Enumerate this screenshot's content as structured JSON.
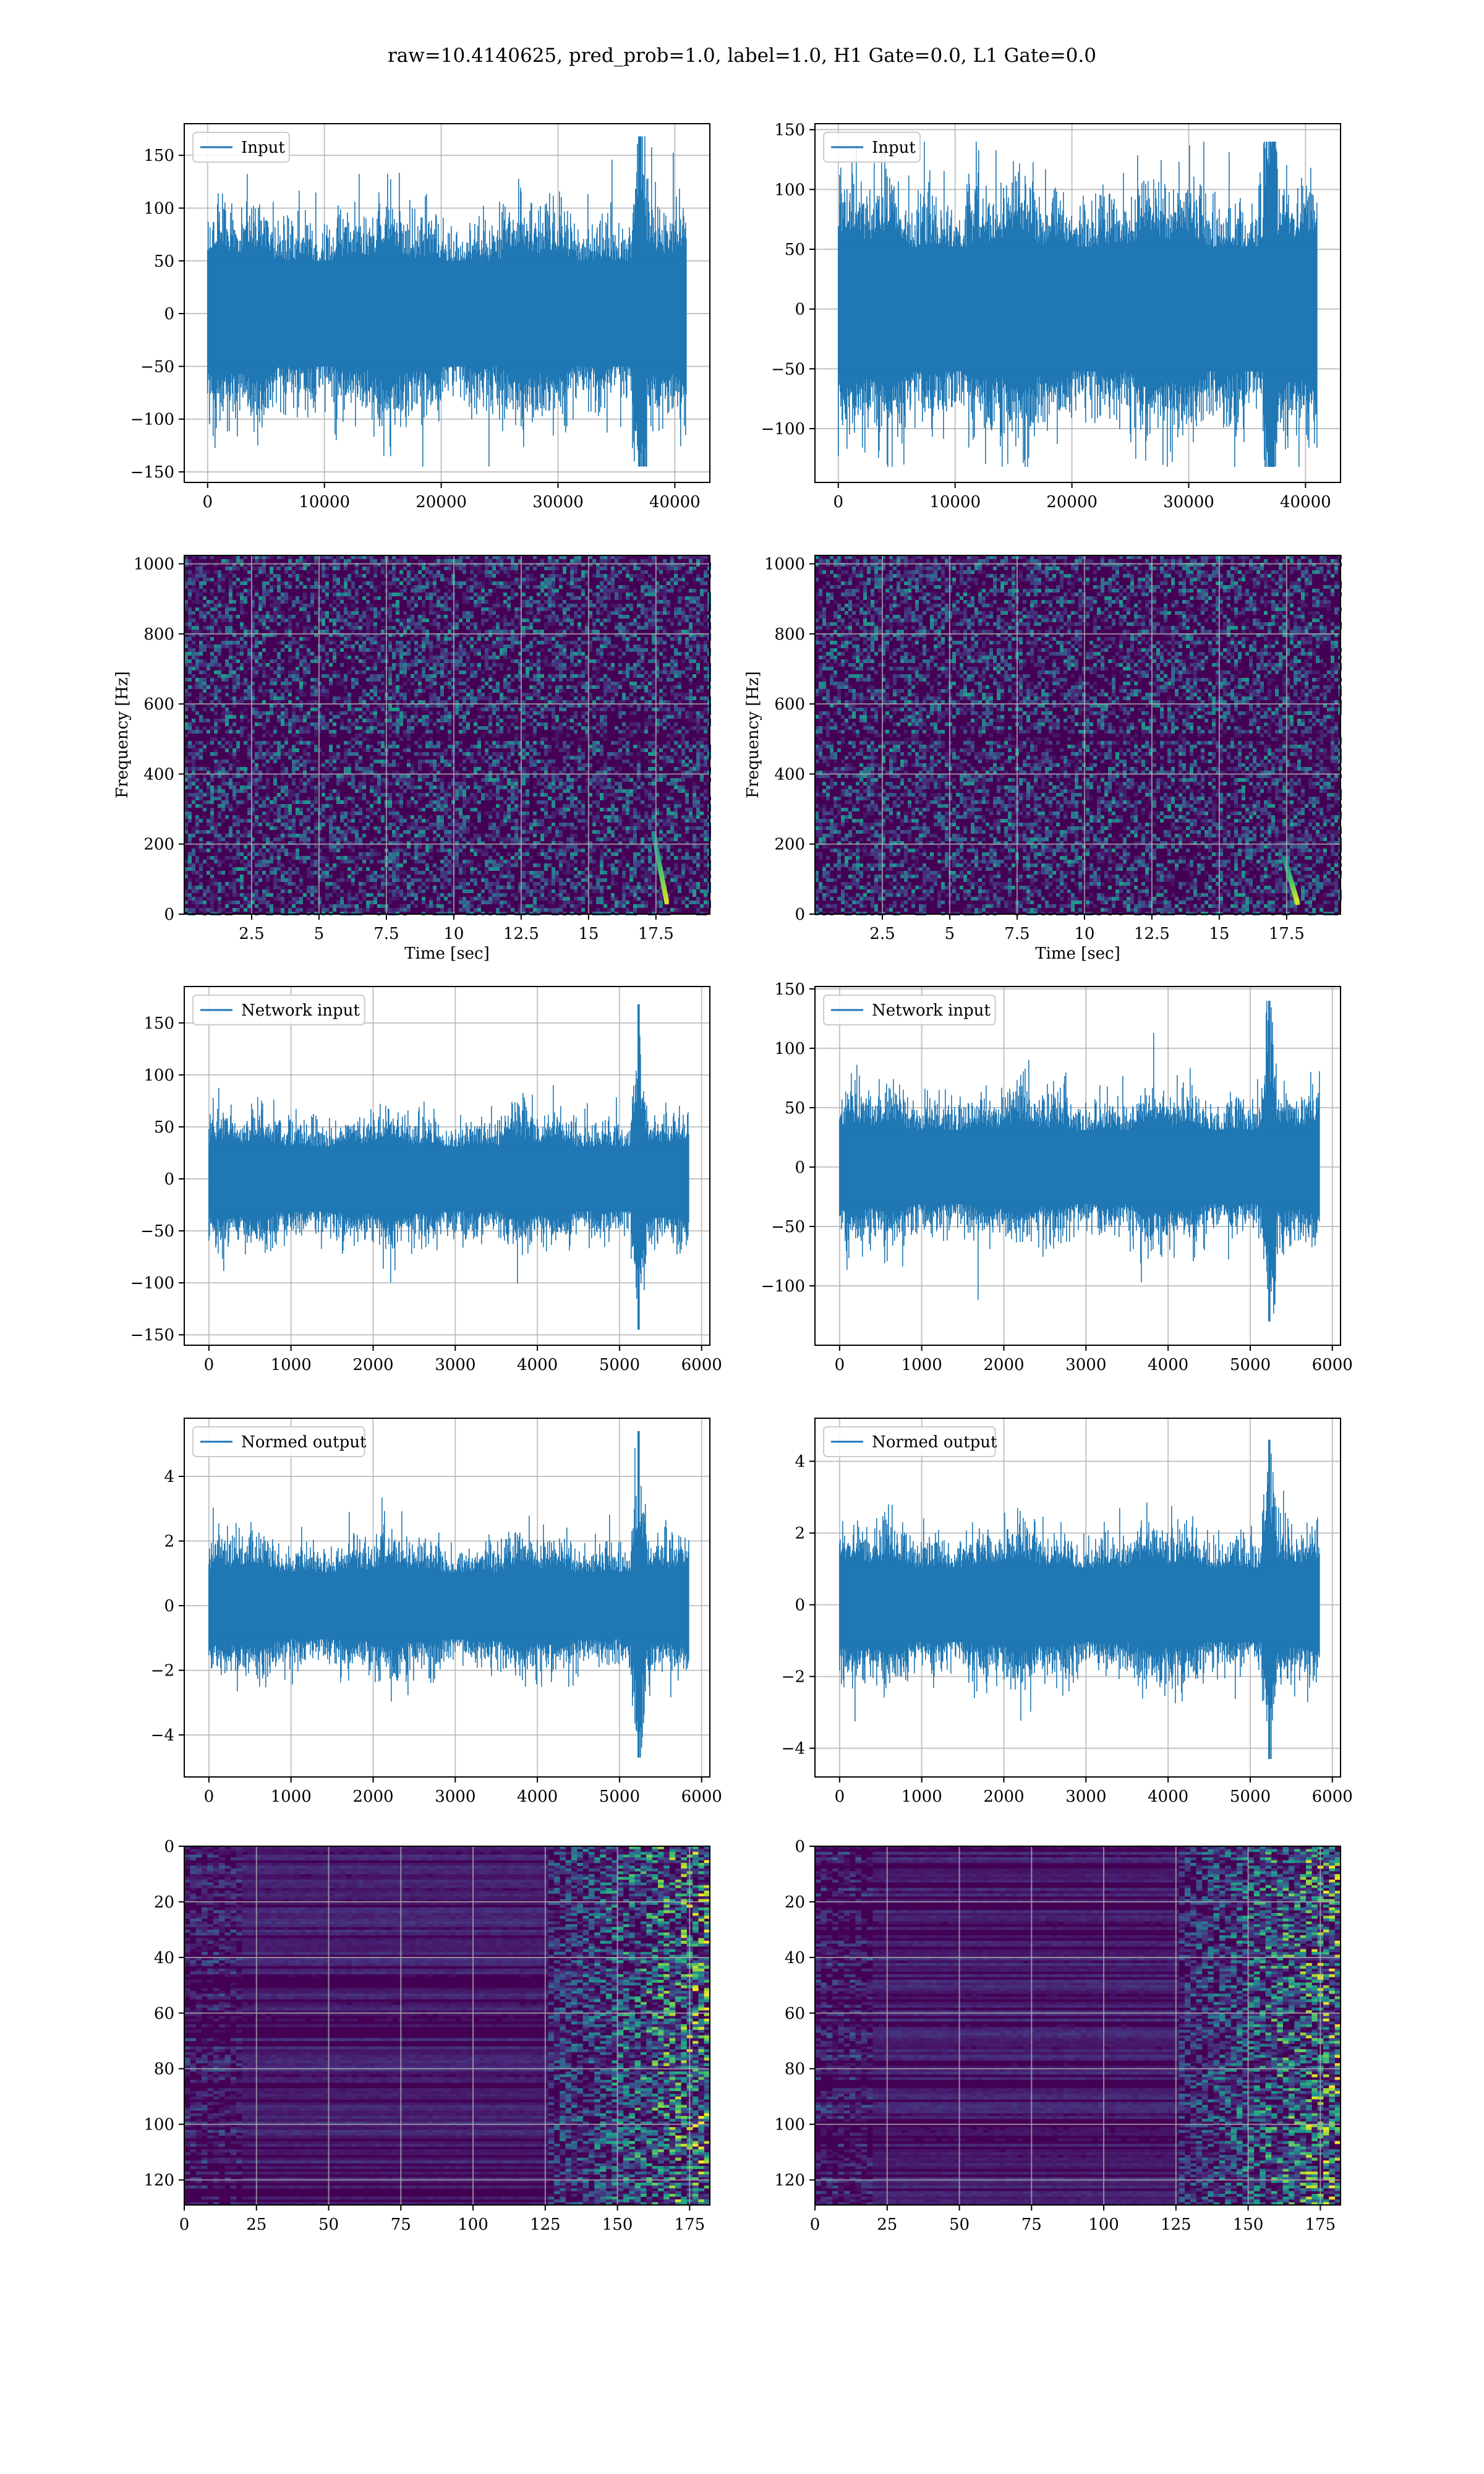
{
  "suptitle": "raw=10.4140625, pred_prob=1.0, label=1.0, H1 Gate=0.0, L1 Gate=0.0",
  "colors": {
    "series": "#1f77b4",
    "grid": "#b0b0b0",
    "viridis_dark": "#440154",
    "viridis_mid": "#21918c",
    "viridis_bright": "#fde725"
  },
  "chart_data": [
    {
      "id": "input-left",
      "type": "line",
      "legend": "Input",
      "legend_loc": "upper-left",
      "xlim": [
        -2000,
        43000
      ],
      "ylim": [
        -160,
        180
      ],
      "xticks": [
        0,
        10000,
        20000,
        30000,
        40000
      ],
      "yticks": [
        -150,
        -100,
        -50,
        0,
        50,
        100,
        150
      ],
      "xlabel": "",
      "ylabel": "",
      "grid": true,
      "n_points": 40960,
      "envelope_typical": 72,
      "envelope_peak": [
        -145,
        168
      ],
      "spike_x": 37000
    },
    {
      "id": "input-right",
      "type": "line",
      "legend": "Input",
      "legend_loc": "upper-left",
      "xlim": [
        -2000,
        43000
      ],
      "ylim": [
        -145,
        155
      ],
      "xticks": [
        0,
        10000,
        20000,
        30000,
        40000
      ],
      "yticks": [
        -100,
        -50,
        0,
        50,
        100,
        150
      ],
      "xlabel": "",
      "ylabel": "",
      "grid": true,
      "n_points": 40960,
      "envelope_typical": 75,
      "envelope_peak": [
        -132,
        140
      ],
      "spike_x": 37000
    },
    {
      "id": "spectrogram-left",
      "type": "heatmap",
      "colormap": "viridis",
      "xlim": [
        0,
        19.5
      ],
      "ylim": [
        0,
        1024
      ],
      "xticks": [
        2.5,
        5.0,
        7.5,
        10.0,
        12.5,
        15.0,
        17.5
      ],
      "yticks": [
        0,
        200,
        400,
        600,
        800,
        1000
      ],
      "xlabel": "Time [sec]",
      "ylabel": "Frequency [Hz]",
      "grid": true,
      "chirp": {
        "t_end": 17.9,
        "f_start": 30,
        "f_end": 230
      }
    },
    {
      "id": "spectrogram-right",
      "type": "heatmap",
      "colormap": "viridis",
      "xlim": [
        0,
        19.5
      ],
      "ylim": [
        0,
        1024
      ],
      "xticks": [
        2.5,
        5.0,
        7.5,
        10.0,
        12.5,
        15.0,
        17.5
      ],
      "yticks": [
        0,
        200,
        400,
        600,
        800,
        1000
      ],
      "xlabel": "Time [sec]",
      "ylabel": "Frequency [Hz]",
      "grid": true,
      "chirp": {
        "t_end": 17.9,
        "f_start": 30,
        "f_end": 160
      }
    },
    {
      "id": "network-input-left",
      "type": "line",
      "legend": "Network input",
      "legend_loc": "upper-left",
      "xlim": [
        -300,
        6100
      ],
      "ylim": [
        -160,
        185
      ],
      "xticks": [
        0,
        1000,
        2000,
        3000,
        4000,
        5000,
        6000
      ],
      "yticks": [
        -150,
        -100,
        -50,
        0,
        50,
        100,
        150
      ],
      "xlabel": "",
      "ylabel": "",
      "grid": true,
      "n_points": 5840,
      "envelope_typical": 45,
      "envelope_peak": [
        -145,
        168
      ],
      "spike_x": 5230
    },
    {
      "id": "network-input-right",
      "type": "line",
      "legend": "Network input",
      "legend_loc": "upper-left",
      "xlim": [
        -300,
        6100
      ],
      "ylim": [
        -150,
        152
      ],
      "xticks": [
        0,
        1000,
        2000,
        3000,
        4000,
        5000,
        6000
      ],
      "yticks": [
        -100,
        -50,
        0,
        50,
        100,
        150
      ],
      "xlabel": "",
      "ylabel": "",
      "grid": true,
      "n_points": 5840,
      "envelope_typical": 45,
      "envelope_peak": [
        -130,
        140
      ],
      "spike_x": 5230
    },
    {
      "id": "normed-output-left",
      "type": "line",
      "legend": "Normed output",
      "legend_loc": "upper-left",
      "xlim": [
        -300,
        6100
      ],
      "ylim": [
        -5.3,
        5.8
      ],
      "xticks": [
        0,
        1000,
        2000,
        3000,
        4000,
        5000,
        6000
      ],
      "yticks": [
        -4,
        -2,
        0,
        2,
        4
      ],
      "xlabel": "",
      "ylabel": "",
      "grid": true,
      "n_points": 5840,
      "envelope_typical": 1.5,
      "envelope_peak": [
        -4.7,
        5.4
      ],
      "spike_x": 5230
    },
    {
      "id": "normed-output-right",
      "type": "line",
      "legend": "Normed output",
      "legend_loc": "upper-left",
      "xlim": [
        -300,
        6100
      ],
      "ylim": [
        -4.8,
        5.2
      ],
      "xticks": [
        0,
        1000,
        2000,
        3000,
        4000,
        5000,
        6000
      ],
      "yticks": [
        -4,
        -2,
        0,
        2,
        4
      ],
      "xlabel": "",
      "ylabel": "",
      "grid": true,
      "n_points": 5840,
      "envelope_typical": 1.5,
      "envelope_peak": [
        -4.3,
        4.6
      ],
      "spike_x": 5230
    },
    {
      "id": "feature-map-left",
      "type": "heatmap",
      "colormap": "viridis",
      "xlim": [
        0,
        182
      ],
      "ylim": [
        129,
        0
      ],
      "xticks": [
        0,
        25,
        50,
        75,
        100,
        125,
        150,
        175
      ],
      "yticks": [
        0,
        20,
        40,
        60,
        80,
        100,
        120
      ],
      "xlabel": "",
      "ylabel": "",
      "grid": true,
      "rows": 129,
      "cols": 182,
      "bright_region_from_col": 125
    },
    {
      "id": "feature-map-right",
      "type": "heatmap",
      "colormap": "viridis",
      "xlim": [
        0,
        182
      ],
      "ylim": [
        129,
        0
      ],
      "xticks": [
        0,
        25,
        50,
        75,
        100,
        125,
        150,
        175
      ],
      "yticks": [
        0,
        20,
        40,
        60,
        80,
        100,
        120
      ],
      "xlabel": "",
      "ylabel": "",
      "grid": true,
      "rows": 129,
      "cols": 182,
      "bright_region_from_col": 125
    }
  ]
}
